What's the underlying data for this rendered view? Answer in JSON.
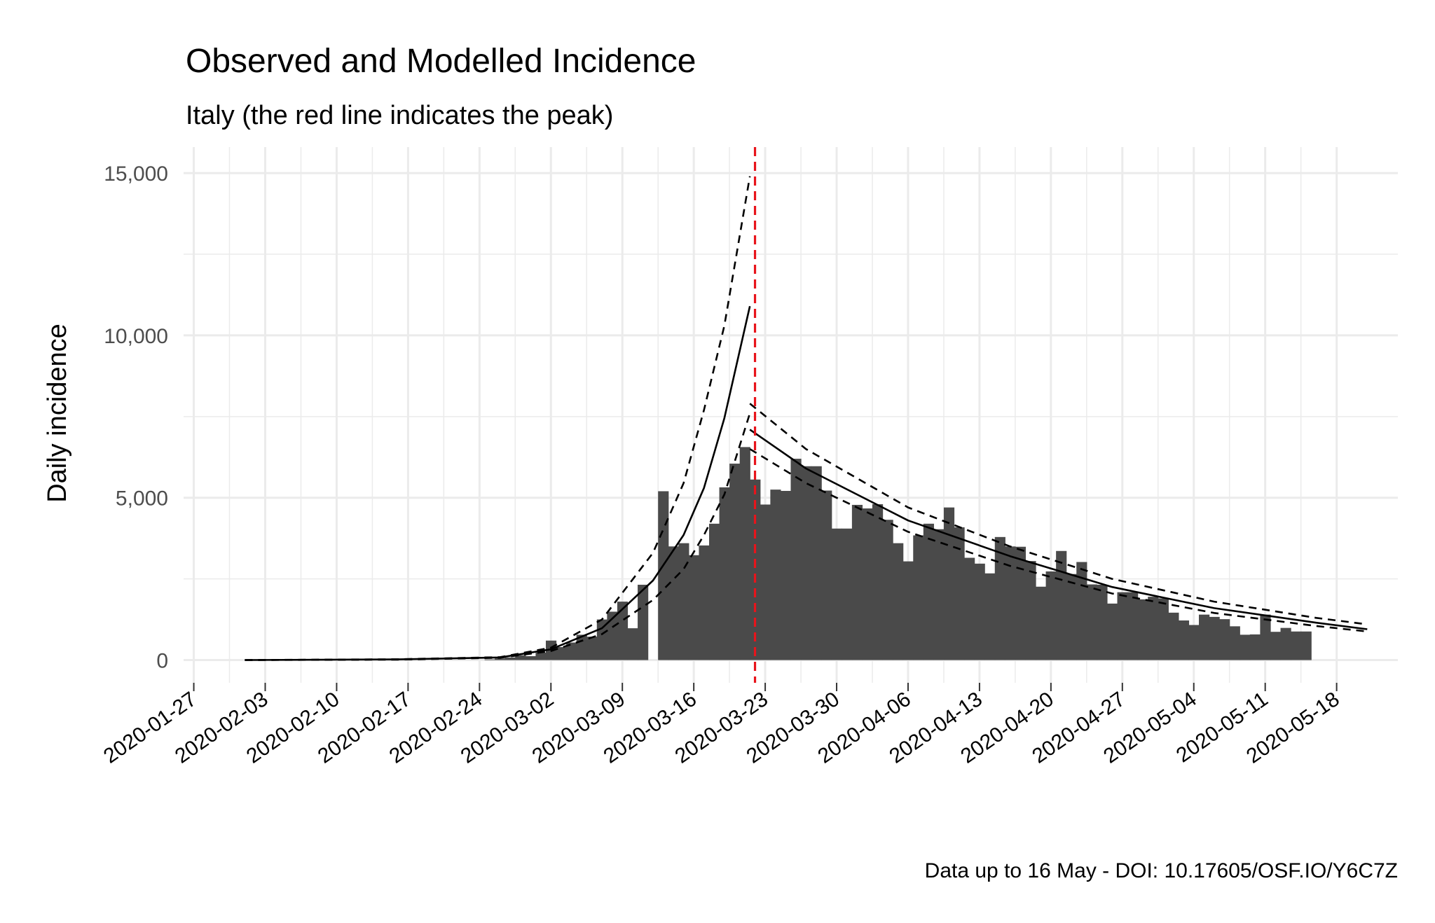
{
  "chart_data": {
    "type": "bar",
    "title": "Observed and Modelled Incidence",
    "subtitle": "Italy (the red line indicates the peak)",
    "xlabel": "",
    "ylabel": "Daily incidence",
    "caption": "Data up to 16 May - DOI: 10.17605/OSF.IO/Y6C7Z",
    "x_start_date": "2020-01-27",
    "xlim_days": [
      -1,
      118
    ],
    "ylim": [
      -700,
      15800
    ],
    "grid": true,
    "y_ticks": [
      0,
      5000,
      10000,
      15000
    ],
    "y_tick_labels": [
      "0",
      "5,000",
      "10,000",
      "15,000"
    ],
    "x_tick_days": [
      0,
      7,
      14,
      21,
      28,
      35,
      42,
      49,
      56,
      63,
      70,
      77,
      84,
      91,
      98,
      105,
      112
    ],
    "x_tick_labels": [
      "2020-01-27",
      "2020-02-03",
      "2020-02-10",
      "2020-02-17",
      "2020-02-24",
      "2020-03-02",
      "2020-03-09",
      "2020-03-16",
      "2020-03-23",
      "2020-03-30",
      "2020-04-06",
      "2020-04-13",
      "2020-04-20",
      "2020-04-27",
      "2020-05-04",
      "2020-05-11",
      "2020-05-18"
    ],
    "peak_day": 55,
    "peak_date": "2020-03-22",
    "bar_start_day": 29,
    "bar_values": [
      20,
      50,
      80,
      150,
      120,
      230,
      600,
      400,
      540,
      780,
      720,
      1250,
      1490,
      1800,
      980,
      2320,
      0,
      5200,
      3500,
      3600,
      3230,
      3530,
      4200,
      5320,
      6050,
      6560,
      5560,
      4790,
      5250,
      5210,
      6200,
      5970,
      5970,
      5220,
      4050,
      4050,
      4780,
      4670,
      4800,
      4320,
      3600,
      3040,
      3840,
      4200,
      4030,
      4700,
      4090,
      3150,
      2970,
      2670,
      3790,
      3500,
      3490,
      3050,
      2260,
      2730,
      3360,
      2650,
      3020,
      2330,
      2320,
      1740,
      2090,
      2090,
      1870,
      1950,
      1900,
      1460,
      1220,
      1080,
      1400,
      1330,
      1260,
      1040,
      780,
      790,
      1400,
      870,
      990,
      880,
      880
    ],
    "series": [
      {
        "name": "Modelled (growth)",
        "style": "solid",
        "start_day": 5,
        "end_day": 54.5,
        "values_at": [
          [
            5,
            0
          ],
          [
            20,
            20
          ],
          [
            30,
            80
          ],
          [
            35,
            330
          ],
          [
            40,
            980
          ],
          [
            45,
            2450
          ],
          [
            48,
            3850
          ],
          [
            50,
            5300
          ],
          [
            52,
            7450
          ],
          [
            54.5,
            10900
          ]
        ]
      },
      {
        "name": "Growth upper bound",
        "style": "dashed",
        "values_at": [
          [
            5,
            0
          ],
          [
            20,
            25
          ],
          [
            30,
            90
          ],
          [
            35,
            380
          ],
          [
            40,
            1250
          ],
          [
            45,
            3300
          ],
          [
            48,
            5450
          ],
          [
            50,
            7700
          ],
          [
            52,
            10300
          ],
          [
            54.5,
            14900
          ]
        ]
      },
      {
        "name": "Growth lower bound",
        "style": "dashed",
        "values_at": [
          [
            5,
            0
          ],
          [
            20,
            15
          ],
          [
            30,
            70
          ],
          [
            35,
            280
          ],
          [
            40,
            800
          ],
          [
            45,
            1850
          ],
          [
            48,
            2800
          ],
          [
            50,
            3850
          ],
          [
            52,
            5100
          ],
          [
            54.5,
            7600
          ]
        ]
      },
      {
        "name": "Modelled (decay)",
        "style": "solid",
        "values_at": [
          [
            54.5,
            7100
          ],
          [
            60,
            5900
          ],
          [
            70,
            4300
          ],
          [
            80,
            3200
          ],
          [
            90,
            2250
          ],
          [
            100,
            1600
          ],
          [
            110,
            1150
          ],
          [
            115,
            950
          ]
        ]
      },
      {
        "name": "Decay upper bound",
        "style": "dashed",
        "values_at": [
          [
            54.5,
            7900
          ],
          [
            60,
            6500
          ],
          [
            70,
            4700
          ],
          [
            80,
            3500
          ],
          [
            90,
            2500
          ],
          [
            100,
            1800
          ],
          [
            110,
            1300
          ],
          [
            115,
            1100
          ]
        ]
      },
      {
        "name": "Decay lower bound",
        "style": "dashed",
        "values_at": [
          [
            54.5,
            6500
          ],
          [
            60,
            5450
          ],
          [
            70,
            3950
          ],
          [
            80,
            2900
          ],
          [
            90,
            2050
          ],
          [
            100,
            1450
          ],
          [
            110,
            1050
          ],
          [
            115,
            880
          ]
        ]
      }
    ]
  },
  "colors": {
    "bar": "#4a4a4a",
    "grid": "#ebebeb",
    "peak_line": "#e8141b",
    "model_line": "#000000"
  }
}
